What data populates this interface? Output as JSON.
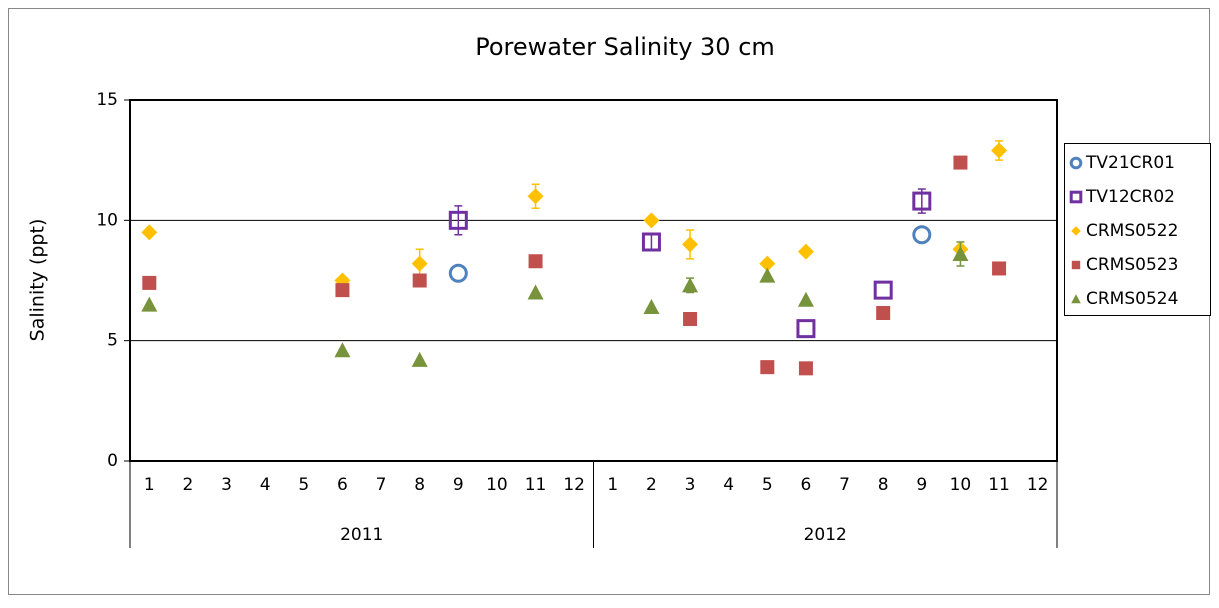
{
  "chart_data": {
    "type": "scatter",
    "title": "Porewater Salinity 30 cm",
    "y_label": "Salinity (ppt)",
    "categories": [
      "1",
      "2",
      "3",
      "4",
      "5",
      "6",
      "7",
      "8",
      "9",
      "10",
      "11",
      "12",
      "1",
      "2",
      "3",
      "4",
      "5",
      "6",
      "7",
      "8",
      "9",
      "10",
      "11",
      "12"
    ],
    "category_groups": [
      "2011",
      "2012"
    ],
    "ylim": [
      0,
      15
    ],
    "yticks": [
      0,
      5,
      10,
      15
    ],
    "grid": true,
    "legend": "right",
    "series": [
      {
        "name": "TV21CR01",
        "color": "#4f81bd",
        "marker": "circle-open",
        "values": [
          null,
          null,
          null,
          null,
          null,
          null,
          null,
          null,
          7.8,
          null,
          null,
          null,
          null,
          null,
          null,
          null,
          null,
          null,
          null,
          null,
          9.4,
          null,
          null,
          null
        ],
        "errors": [
          null,
          null,
          null,
          null,
          null,
          null,
          null,
          null,
          null,
          null,
          null,
          null,
          null,
          null,
          null,
          null,
          null,
          null,
          null,
          null,
          null,
          null,
          null,
          null
        ]
      },
      {
        "name": "TV12CR02",
        "color": "#7030a0",
        "marker": "square-open",
        "values": [
          null,
          null,
          null,
          null,
          null,
          null,
          null,
          null,
          10.0,
          null,
          null,
          null,
          null,
          9.1,
          null,
          null,
          null,
          5.5,
          null,
          7.1,
          10.8,
          null,
          null,
          null
        ],
        "errors": [
          null,
          null,
          null,
          null,
          null,
          null,
          null,
          null,
          0.6,
          null,
          null,
          null,
          null,
          0.3,
          null,
          null,
          null,
          null,
          null,
          null,
          0.5,
          null,
          null,
          null
        ]
      },
      {
        "name": "CRMS0522",
        "color": "#ffc000",
        "marker": "diamond",
        "values": [
          9.5,
          null,
          null,
          null,
          null,
          7.5,
          null,
          8.2,
          null,
          null,
          11.0,
          null,
          null,
          10.0,
          9.0,
          null,
          8.2,
          8.7,
          null,
          null,
          null,
          8.8,
          12.9,
          null
        ],
        "errors": [
          null,
          null,
          null,
          null,
          null,
          null,
          null,
          0.6,
          null,
          null,
          0.5,
          null,
          null,
          null,
          0.6,
          null,
          null,
          null,
          null,
          null,
          null,
          null,
          0.4,
          null
        ]
      },
      {
        "name": "CRMS0523",
        "color": "#c0504d",
        "marker": "square",
        "values": [
          7.4,
          null,
          null,
          null,
          null,
          7.1,
          null,
          7.5,
          null,
          null,
          8.3,
          null,
          null,
          null,
          5.9,
          null,
          3.9,
          3.85,
          null,
          6.15,
          null,
          12.4,
          8.0,
          null
        ],
        "errors": [
          null,
          null,
          null,
          null,
          null,
          null,
          null,
          null,
          null,
          null,
          null,
          null,
          null,
          null,
          null,
          null,
          null,
          null,
          null,
          null,
          null,
          null,
          null,
          null
        ]
      },
      {
        "name": "CRMS0524",
        "color": "#77933c",
        "marker": "triangle",
        "values": [
          6.5,
          null,
          null,
          null,
          null,
          4.6,
          null,
          4.2,
          null,
          null,
          7.0,
          null,
          null,
          6.4,
          7.3,
          null,
          7.7,
          6.7,
          null,
          null,
          null,
          8.6,
          null,
          null
        ],
        "errors": [
          null,
          null,
          null,
          null,
          null,
          null,
          null,
          null,
          null,
          null,
          null,
          null,
          null,
          null,
          0.3,
          null,
          null,
          null,
          null,
          null,
          null,
          0.5,
          null,
          null
        ]
      }
    ]
  }
}
